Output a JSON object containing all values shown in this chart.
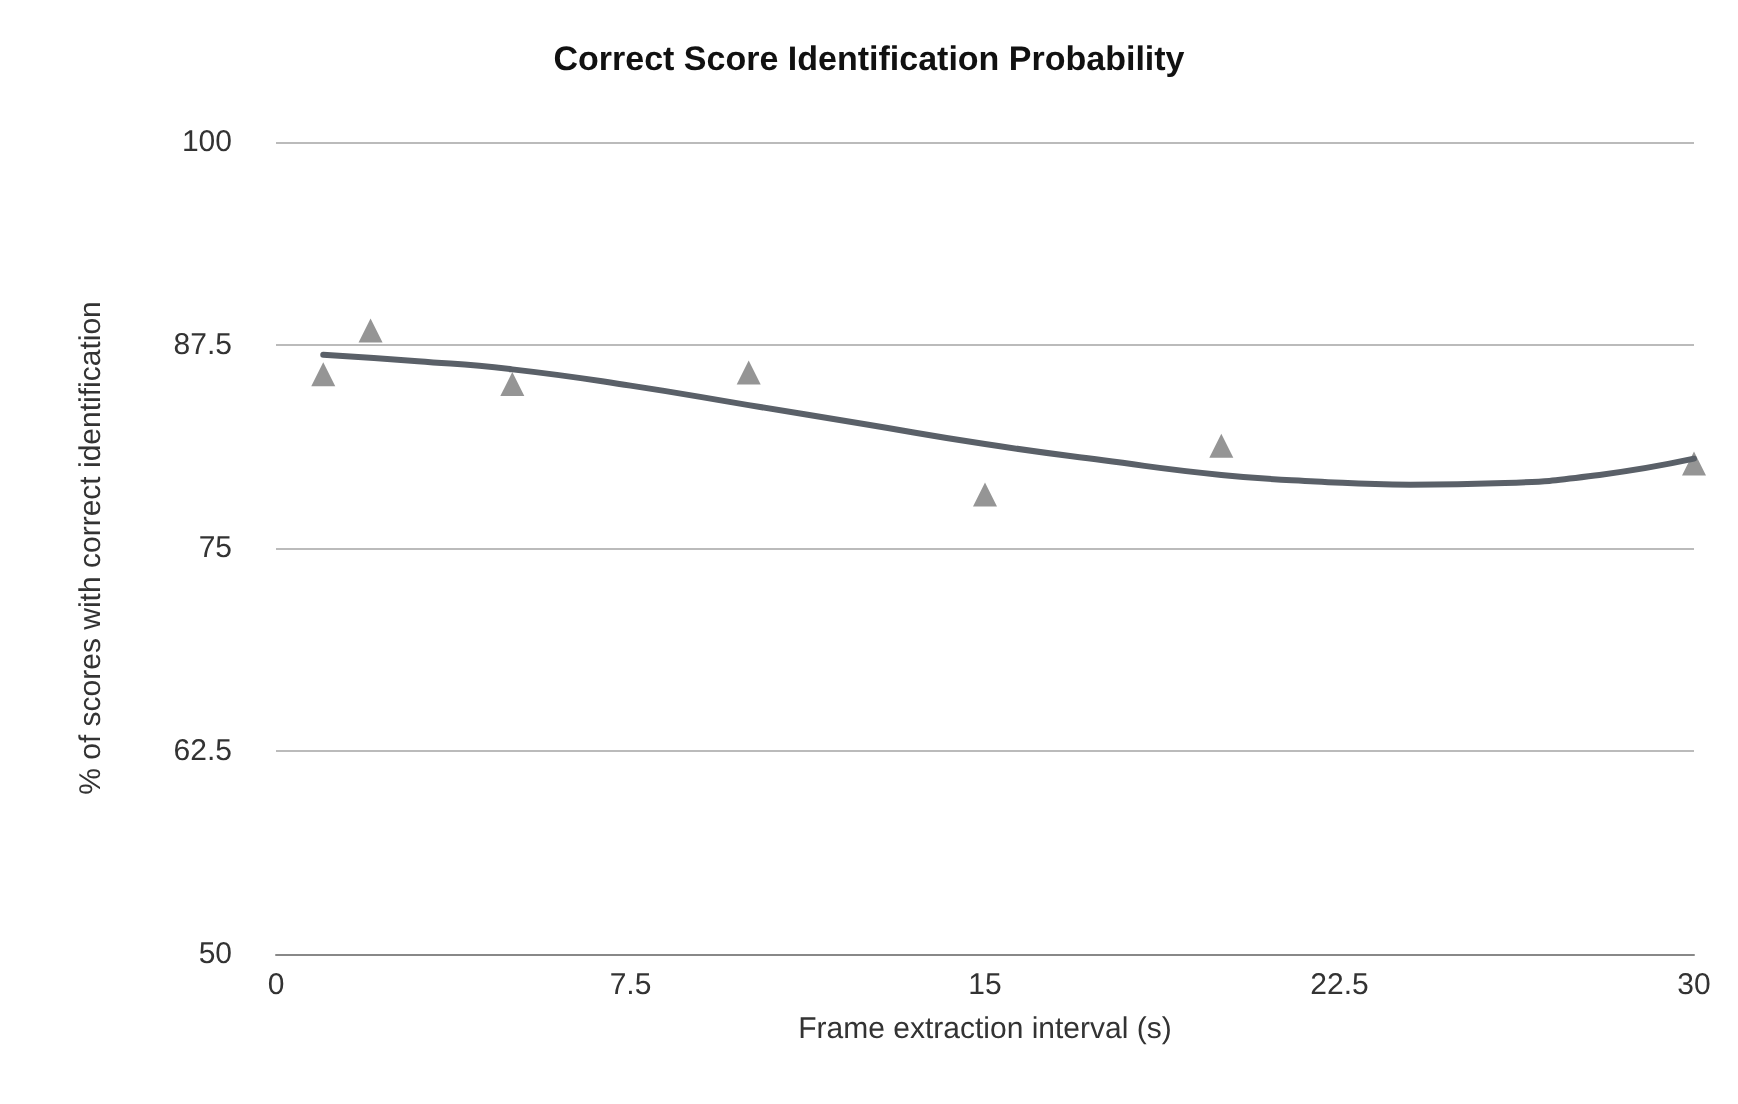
{
  "chart_data": {
    "type": "scatter",
    "title": "Correct Score Identification Probability",
    "xlabel": "Frame extraction interval (s)",
    "ylabel": "% of scores with correct identification",
    "xlim": [
      0,
      30
    ],
    "xticks": [
      0,
      7.5,
      15,
      22.5,
      30
    ],
    "ylim": [
      50,
      100
    ],
    "yticks": [
      50,
      62.5,
      75,
      87.5,
      100
    ],
    "grid": "y",
    "marker": "triangle",
    "series": [
      {
        "color": "#7a7a7a",
        "x": [
          1,
          2,
          5,
          10,
          15,
          20,
          30
        ],
        "values": [
          85.7,
          88.4,
          85.1,
          85.8,
          78.3,
          81.3,
          80.2
        ]
      },
      {
        "type": "line",
        "color": "#5a6068",
        "marker": "none",
        "line_style": "solid",
        "x": [
          1,
          3,
          5,
          7.5,
          10,
          12.5,
          15,
          17.5,
          20,
          22,
          24,
          26,
          28,
          30
        ],
        "values": [
          86.9,
          86.5,
          86.0,
          85.0,
          83.8,
          82.6,
          81.4,
          80.4,
          79.5,
          79.1,
          78.9,
          79.0,
          79.5,
          80.5
        ]
      }
    ]
  }
}
